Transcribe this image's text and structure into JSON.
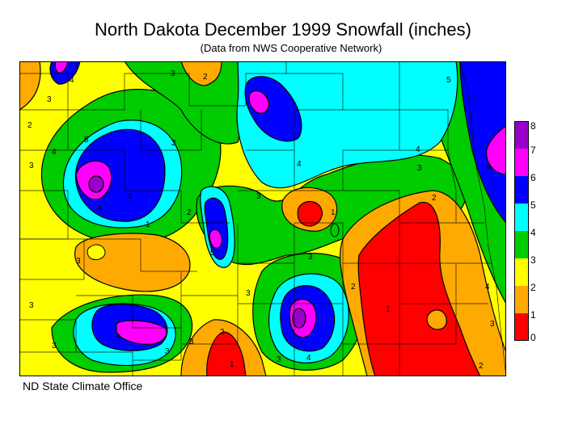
{
  "title": "North Dakota December 1999 Snowfall (inches)",
  "subtitle": "(Data from NWS Cooperative Network)",
  "footer": "ND State Climate Office",
  "legend": {
    "levels": [
      "8",
      "7",
      "6",
      "5",
      "4",
      "3",
      "2",
      "1",
      "0"
    ],
    "colors": [
      "#9900cc",
      "#ff00ff",
      "#0000ff",
      "#00ffff",
      "#00cc00",
      "#ffff00",
      "#ffaa00",
      "#ff0000"
    ]
  },
  "contour_labels": [
    "1",
    "2",
    "3",
    "4",
    "5",
    "6"
  ]
}
